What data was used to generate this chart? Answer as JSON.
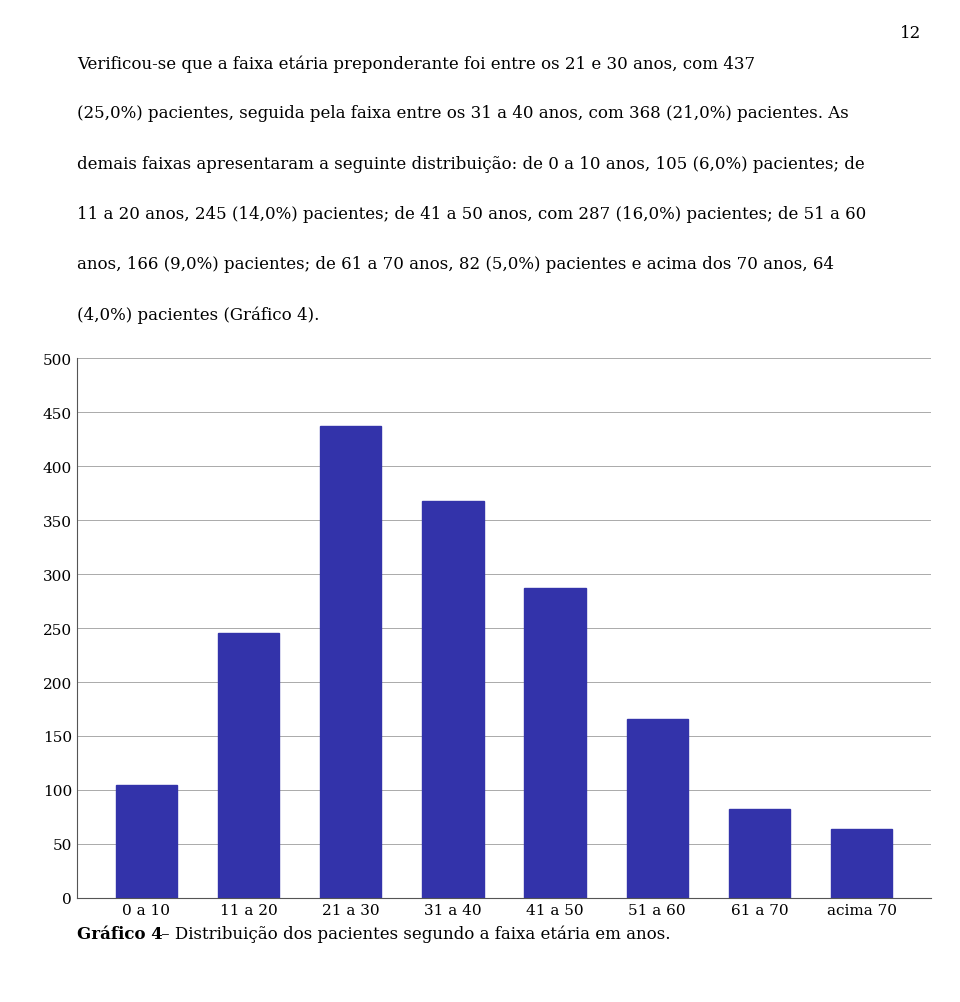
{
  "categories": [
    "0 a 10",
    "11 a 20",
    "21 a 30",
    "31 a 40",
    "41 a 50",
    "51 a 60",
    "61 a 70",
    "acima 70"
  ],
  "values": [
    105,
    245,
    437,
    368,
    287,
    166,
    82,
    64
  ],
  "bar_color": "#3333AA",
  "ylim": [
    0,
    500
  ],
  "yticks": [
    0,
    50,
    100,
    150,
    200,
    250,
    300,
    350,
    400,
    450,
    500
  ],
  "background_color": "#FFFFFF",
  "page_number": "12",
  "paragraph_text": "Verificou-se que a faixa etária preponderante foi entre os 21 e 30 anos, com 437 (25,0%) pacientes, seguida pela faixa entre os 31 a 40 anos, com 368 (21,0%) pacientes. As demais faixas apresentaram a seguinte distribuição: de 0 a 10 anos, 105 (6,0%) pacientes; de 11 a 20 anos, 245 (14,0%) pacientes; de 41 a 50 anos, com 287 (16,0%) pacientes; de 51 a 60 anos, 166 (9,0%) pacientes; de 61 a 70 anos, 82 (5,0%) pacientes e acima dos 70 anos, 64 (4,0%) pacientes (Gráfico 4).",
  "caption_bold": "Gráfico 4",
  "caption_rest": " – Distribuição dos pacientes segundo a faixa etária em anos.",
  "tick_fontsize": 11,
  "caption_fontsize": 12,
  "paragraph_fontsize": 12,
  "page_num_fontsize": 12
}
